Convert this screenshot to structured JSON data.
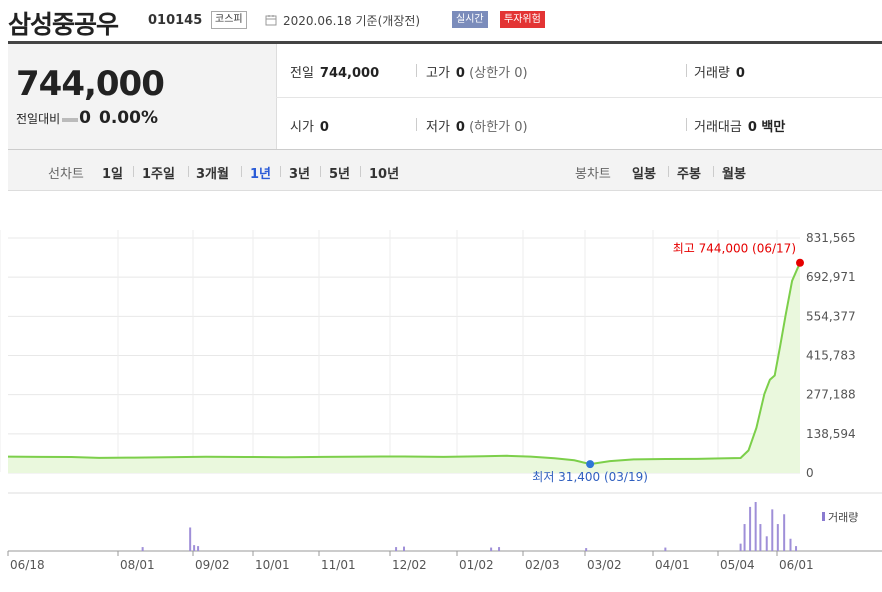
{
  "header": {
    "name": "삼성중공우",
    "code": "010145",
    "market": "코스피",
    "date": "2020.06.18 기준(개장전)",
    "badge_realtime": "실시간",
    "badge_risk": "투자위험"
  },
  "price": {
    "current": "744,000",
    "change_label": "전일대비",
    "change_value": "0",
    "change_pct": "0.00%"
  },
  "info": {
    "prev_label": "전일",
    "prev_value": "744,000",
    "high_label": "고가",
    "high_value": "0",
    "high_sub": "(상한가 0)",
    "volume_label": "거래량",
    "volume_value": "0",
    "open_label": "시가",
    "open_value": "0",
    "low_label": "저가",
    "low_value": "0",
    "low_sub": "(하한가 0)",
    "amount_label": "거래대금",
    "amount_value": "0 백만"
  },
  "tabs": {
    "line_label": "선차트",
    "line_items": [
      "1일",
      "1주일",
      "3개월",
      "1년",
      "3년",
      "5년",
      "10년"
    ],
    "line_selected": "1년",
    "candle_label": "봉차트",
    "candle_items": [
      "일봉",
      "주봉",
      "월봉"
    ]
  },
  "chart_data": {
    "type": "line",
    "title": "",
    "xlabel": "",
    "ylabel": "",
    "ylim": [
      0,
      831565
    ],
    "yticks": [
      "831,565",
      "692,971",
      "554,377",
      "415,783",
      "277,188",
      "138,594",
      "0"
    ],
    "xticks": [
      "06/18",
      "08/01",
      "09/02",
      "10/01",
      "11/01",
      "12/02",
      "01/02",
      "02/03",
      "03/02",
      "04/01",
      "05/04",
      "06/01"
    ],
    "max_label": "최고 744,000 (06/17)",
    "min_label": "최저 31,400 (03/19)",
    "volume_legend": "거래량",
    "grid": true,
    "series": [
      {
        "values": [
          [
            0,
            58000
          ],
          [
            0.04,
            57000
          ],
          [
            0.08,
            56500
          ],
          [
            0.115,
            53500
          ],
          [
            0.16,
            54500
          ],
          [
            0.2,
            56000
          ],
          [
            0.25,
            57500
          ],
          [
            0.3,
            56500
          ],
          [
            0.35,
            56000
          ],
          [
            0.4,
            57000
          ],
          [
            0.45,
            58000
          ],
          [
            0.5,
            58500
          ],
          [
            0.55,
            57000
          ],
          [
            0.6,
            59000
          ],
          [
            0.63,
            61000
          ],
          [
            0.66,
            58000
          ],
          [
            0.69,
            52000
          ],
          [
            0.715,
            45000
          ],
          [
            0.735,
            31400
          ],
          [
            0.76,
            42000
          ],
          [
            0.79,
            48000
          ],
          [
            0.83,
            49500
          ],
          [
            0.87,
            50000
          ],
          [
            0.9,
            51500
          ],
          [
            0.925,
            53000
          ],
          [
            0.935,
            80000
          ],
          [
            0.945,
            160000
          ],
          [
            0.955,
            280000
          ],
          [
            0.962,
            330000
          ],
          [
            0.968,
            345000
          ],
          [
            0.975,
            450000
          ],
          [
            0.982,
            560000
          ],
          [
            0.99,
            680000
          ],
          [
            1.0,
            744000
          ]
        ]
      }
    ],
    "volume": [
      [
        0.17,
        0.08
      ],
      [
        0.23,
        0.48
      ],
      [
        0.235,
        0.12
      ],
      [
        0.24,
        0.1
      ],
      [
        0.49,
        0.08
      ],
      [
        0.5,
        0.09
      ],
      [
        0.61,
        0.07
      ],
      [
        0.62,
        0.08
      ],
      [
        0.73,
        0.06
      ],
      [
        0.83,
        0.07
      ],
      [
        0.925,
        0.15
      ],
      [
        0.93,
        0.55
      ],
      [
        0.937,
        0.9
      ],
      [
        0.944,
        1.0
      ],
      [
        0.95,
        0.55
      ],
      [
        0.958,
        0.3
      ],
      [
        0.965,
        0.85
      ],
      [
        0.972,
        0.55
      ],
      [
        0.98,
        0.75
      ],
      [
        0.988,
        0.25
      ],
      [
        0.995,
        0.1
      ]
    ]
  }
}
